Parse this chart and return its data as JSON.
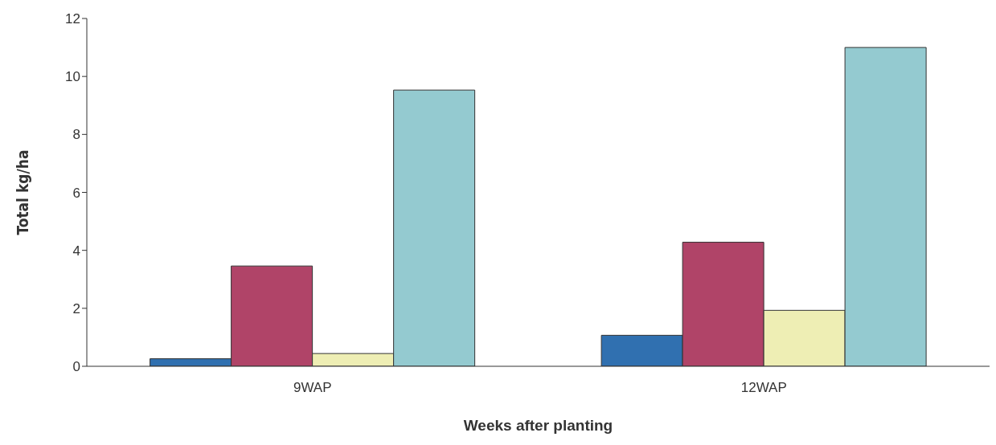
{
  "chart_data": {
    "type": "bar",
    "xlabel": "Weeks after planting",
    "ylabel": "Total kg/ha",
    "categories": [
      "9WAP",
      "12WAP"
    ],
    "series": [
      {
        "color": "#3070b0",
        "values": [
          0.26,
          1.07
        ]
      },
      {
        "color": "#b04468",
        "values": [
          3.46,
          4.28
        ]
      },
      {
        "color": "#eeeeb4",
        "values": [
          0.44,
          1.93
        ]
      },
      {
        "color": "#94cad0",
        "values": [
          9.53,
          11.0
        ]
      }
    ],
    "ylim": [
      0,
      12
    ],
    "yticks": [
      0,
      2,
      4,
      6,
      8,
      10,
      12
    ],
    "grid": false,
    "legend": false
  }
}
